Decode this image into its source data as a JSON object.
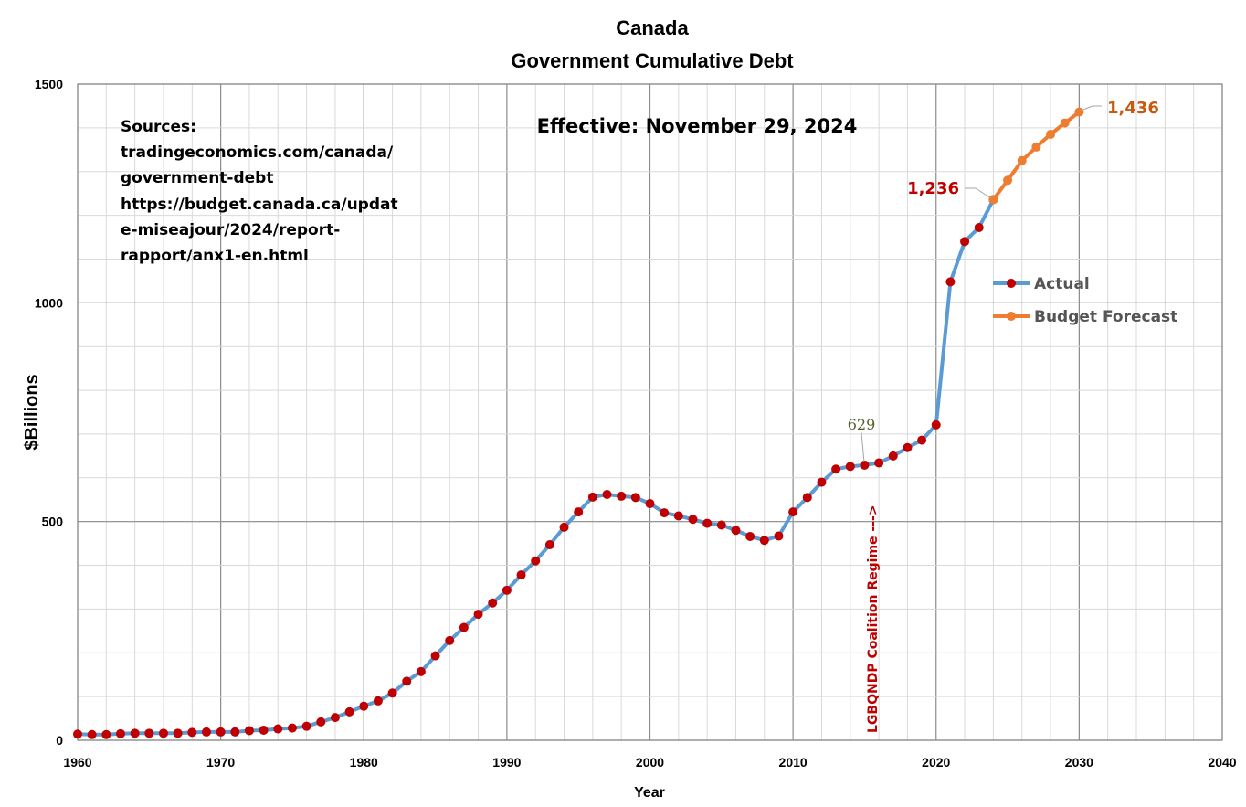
{
  "chart_data": {
    "type": "line",
    "title": [
      "Canada",
      "Government Cumulative Debt"
    ],
    "xlabel": "Year",
    "ylabel": "$Billions",
    "xlim": [
      1960,
      2040
    ],
    "ylim": [
      0,
      1500
    ],
    "x_ticks": [
      1960,
      1970,
      1980,
      1990,
      2000,
      2010,
      2020,
      2030,
      2040
    ],
    "y_ticks": [
      0,
      500,
      1000,
      1500
    ],
    "grid": true,
    "legend_position": "right",
    "series": [
      {
        "name": "Actual",
        "color": "#5b9bd5",
        "marker_color": "#c00000",
        "x": [
          1960,
          1961,
          1962,
          1963,
          1964,
          1965,
          1966,
          1967,
          1968,
          1969,
          1970,
          1971,
          1972,
          1973,
          1974,
          1975,
          1976,
          1977,
          1978,
          1979,
          1980,
          1981,
          1982,
          1983,
          1984,
          1985,
          1986,
          1987,
          1988,
          1989,
          1990,
          1991,
          1992,
          1993,
          1994,
          1995,
          1996,
          1997,
          1998,
          1999,
          2000,
          2001,
          2002,
          2003,
          2004,
          2005,
          2006,
          2007,
          2008,
          2009,
          2010,
          2011,
          2012,
          2013,
          2014,
          2015,
          2016,
          2017,
          2018,
          2019,
          2020,
          2021,
          2022,
          2023,
          2024
        ],
        "values": [
          14,
          13,
          13,
          15,
          16,
          16,
          16,
          16,
          18,
          19,
          19,
          19,
          22,
          23,
          26,
          28,
          32,
          42,
          52,
          65,
          78,
          90,
          108,
          135,
          157,
          193,
          228,
          258,
          288,
          314,
          343,
          378,
          410,
          447,
          487,
          522,
          556,
          562,
          558,
          555,
          541,
          520,
          513,
          505,
          496,
          492,
          480,
          466,
          457,
          467,
          522,
          555,
          590,
          620,
          626,
          629,
          634,
          650,
          669,
          686,
          721,
          1048,
          1140,
          1172,
          1236
        ]
      },
      {
        "name": "Budget Forecast",
        "color": "#ed7d31",
        "marker_color": "#ed7d31",
        "x": [
          2024,
          2025,
          2026,
          2027,
          2028,
          2029,
          2030
        ],
        "values": [
          1236,
          1280,
          1325,
          1356,
          1385,
          1411,
          1436
        ]
      }
    ],
    "annotations": {
      "sources": [
        "Sources:",
        "tradingeconomics.com/canada/",
        "government-debt",
        "https://budget.canada.ca/updat",
        "e-miseajour/2024/report-",
        "rapport/anx1-en.html"
      ],
      "effective": "Effective: November 29, 2024",
      "label_2015": "629",
      "label_2024": "1,236",
      "label_2030": "1,436",
      "regime_label": "LGBQNDP Coalition Regime --->",
      "label_2015_color": "#4f6228",
      "label_2024_color": "#c00000",
      "label_2030_color": "#c55a11",
      "regime_color": "#c00000"
    }
  }
}
